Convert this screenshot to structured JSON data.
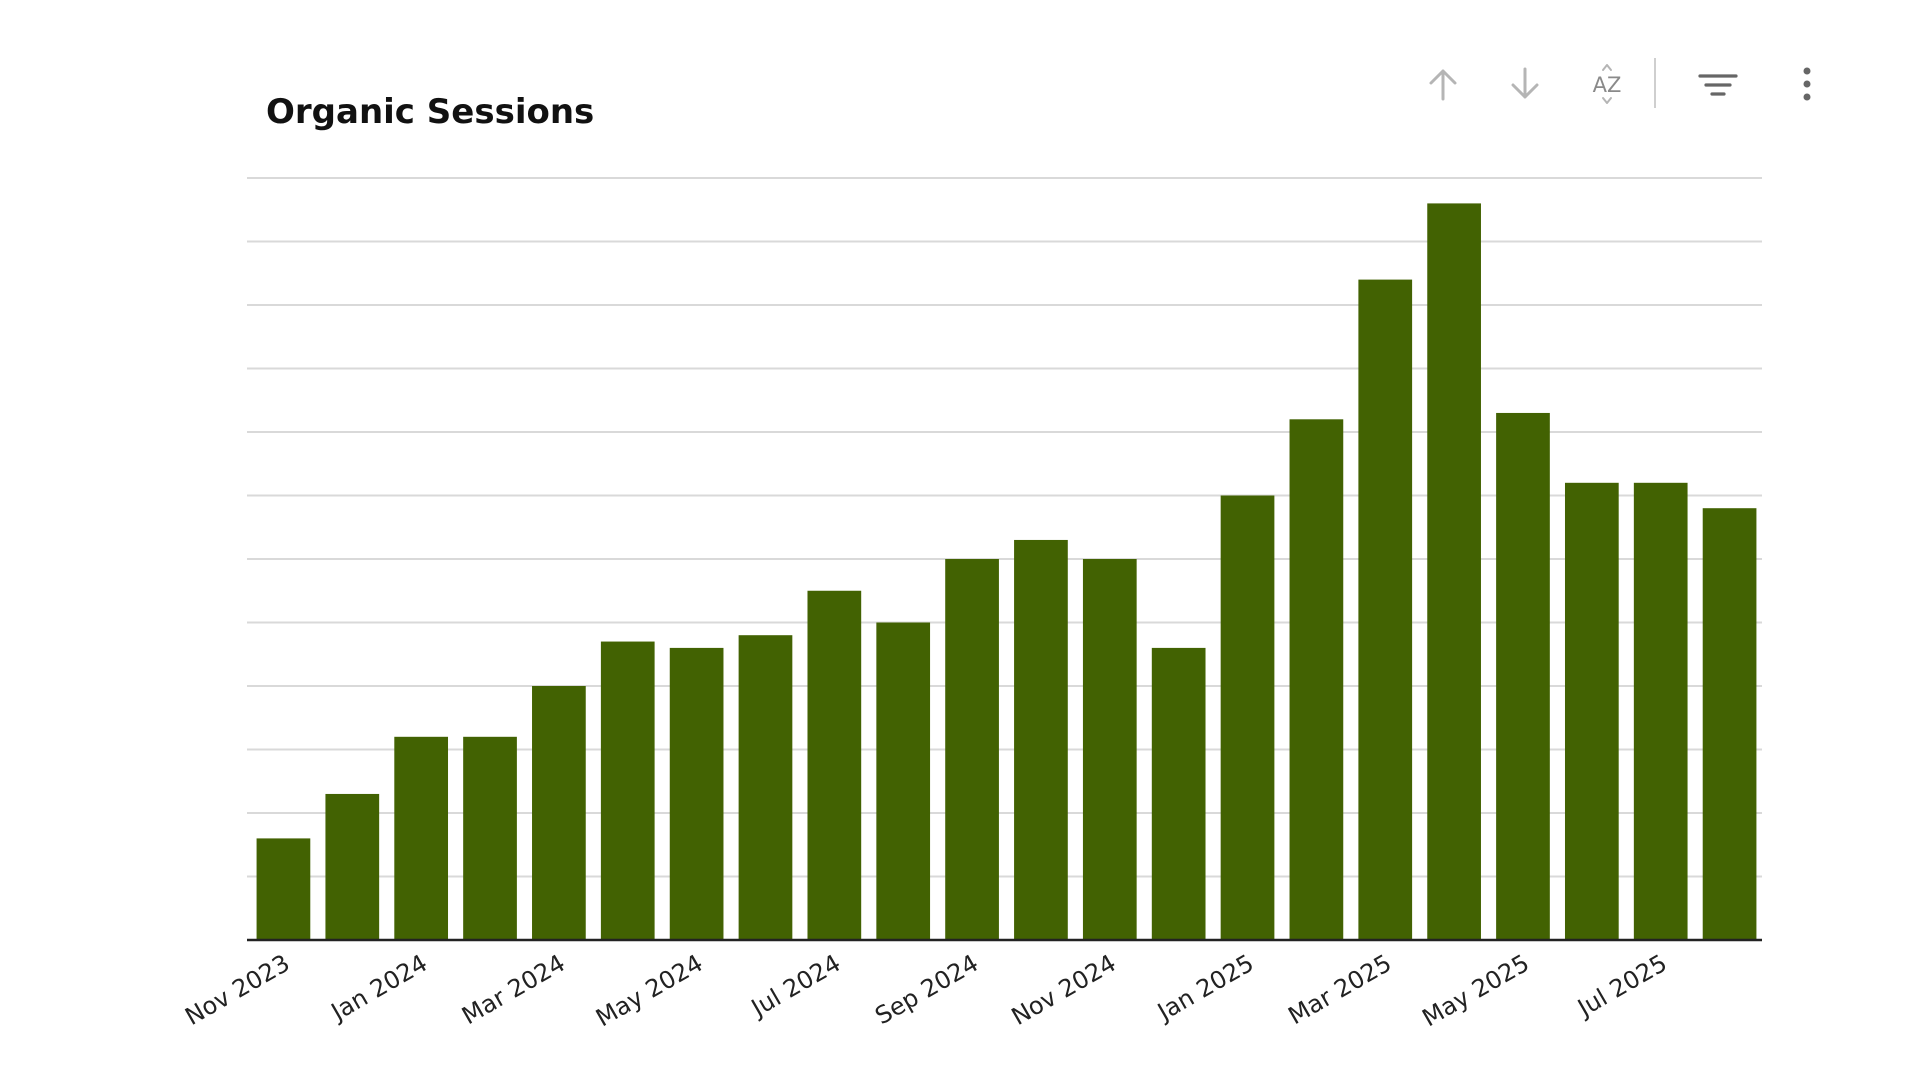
{
  "title": "Organic Sessions",
  "toolbar": {
    "sort_ascending_icon": "arrow-up-icon",
    "sort_descending_icon": "arrow-down-icon",
    "sort_alpha_icon": "sort-a-z-icon",
    "filter_icon": "filter-icon",
    "more_icon": "more-vert-icon",
    "sort_alpha_label": "AZ"
  },
  "colors": {
    "bar": "#426202",
    "grid": "#d9d9d9",
    "baseline": "#222222",
    "icon_disabled": "#b5b5b5",
    "icon_active": "#666666"
  },
  "chart_data": {
    "type": "bar",
    "title": "Organic Sessions",
    "categories": [
      "Nov 2023",
      "Dec 2023",
      "Jan 2024",
      "Feb 2024",
      "Mar 2024",
      "Apr 2024",
      "May 2024",
      "Jun 2024",
      "Jul 2024",
      "Aug 2024",
      "Sep 2024",
      "Oct 2024",
      "Nov 2024",
      "Dec 2024",
      "Jan 2025",
      "Feb 2025",
      "Mar 2025",
      "Apr 2025",
      "May 2025",
      "Jun 2025",
      "Jul 2025",
      "Aug 2025"
    ],
    "x_tick_labels": [
      "Nov 2023",
      "Jan 2024",
      "Mar 2024",
      "May 2024",
      "Jul 2024",
      "Sep 2024",
      "Nov 2024",
      "Jan 2025",
      "Mar 2025",
      "May 2025",
      "Jul 2025"
    ],
    "values": [
      1.6,
      2.3,
      3.2,
      3.2,
      4.0,
      4.7,
      4.6,
      4.8,
      5.5,
      5.0,
      6.0,
      6.3,
      6.0,
      4.6,
      7.0,
      8.2,
      10.4,
      11.6,
      8.3,
      7.2,
      7.2,
      6.8
    ],
    "ylim": [
      0,
      12
    ],
    "y_grid_step": 1,
    "xlabel": "",
    "ylabel": "",
    "y_tick_labels_shown": false,
    "grid": true,
    "legend": "none"
  }
}
